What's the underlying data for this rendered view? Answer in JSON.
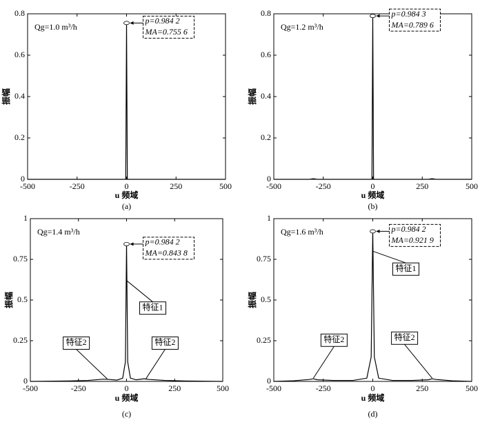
{
  "chart_data": [
    {
      "type": "line",
      "annotation": "Qg=1.0 m³/h",
      "peak_p": "p=0.984 2",
      "peak_ma": "MA=0.755 6",
      "xlabel": "u 频域",
      "ylabel": "振幅",
      "caption": "(a)",
      "x": [
        -500,
        -4,
        0,
        4,
        500
      ],
      "values": [
        0,
        0,
        0.7556,
        0,
        0
      ],
      "color": "#000000",
      "peak": {
        "x": 0,
        "y": 0.7556
      },
      "xlim": [
        -500,
        500
      ],
      "ylim": [
        0,
        0.8
      ],
      "xticks": [
        -500,
        -250,
        0,
        250,
        500
      ],
      "yticks": [
        0,
        0.2,
        0.4,
        0.6,
        0.8
      ]
    },
    {
      "type": "line",
      "annotation": "Qg=1.2 m³/h",
      "peak_p": "p=0.984 3",
      "peak_ma": "MA=0.789 6",
      "xlabel": "u 频域",
      "ylabel": "振幅",
      "caption": "(b)",
      "x": [
        -500,
        -320,
        -300,
        -280,
        -4,
        0,
        4,
        280,
        300,
        320,
        500
      ],
      "values": [
        0,
        0,
        0.003,
        0,
        0,
        0.7896,
        0,
        0,
        0.003,
        0,
        0
      ],
      "color": "#000000",
      "peak": {
        "x": 0,
        "y": 0.7896
      },
      "xlim": [
        -500,
        500
      ],
      "ylim": [
        0,
        0.8
      ],
      "xticks": [
        -500,
        -250,
        0,
        250,
        500
      ],
      "yticks": [
        0,
        0.2,
        0.4,
        0.6,
        0.8
      ]
    },
    {
      "type": "line",
      "annotation": "Qg=1.4 m³/h",
      "peak_p": "p=0.984 2",
      "peak_ma": "MA=0.843 8",
      "xlabel": "u 频域",
      "ylabel": "振幅",
      "caption": "(c)",
      "x": [
        -500,
        -300,
        -200,
        -120,
        -90,
        -50,
        -20,
        -6,
        0,
        6,
        20,
        50,
        90,
        120,
        200,
        300,
        500
      ],
      "values": [
        0,
        0.003,
        0.006,
        0.014,
        0.012,
        0.008,
        0.02,
        0.12,
        0.8438,
        0.12,
        0.02,
        0.01,
        0.016,
        0.012,
        0.006,
        0.003,
        0
      ],
      "color": "#000000",
      "peak": {
        "x": 0,
        "y": 0.8438
      },
      "features": [
        {
          "text": "特征1",
          "x": 0,
          "y": 0.62
        },
        {
          "text": "特征2",
          "x": -100,
          "y": 0.015
        },
        {
          "text": "特征2",
          "x": 100,
          "y": 0.015
        }
      ],
      "xlim": [
        -500,
        500
      ],
      "ylim": [
        0,
        1
      ],
      "xticks": [
        -500,
        -250,
        0,
        250,
        500
      ],
      "yticks": [
        0,
        0.25,
        0.5,
        0.75,
        1
      ]
    },
    {
      "type": "line",
      "annotation": "Qg=1.6 m³/h",
      "peak_p": "p=0.984 2",
      "peak_ma": "MA=0.921 9",
      "xlabel": "u 频域",
      "ylabel": "振幅",
      "caption": "(d)",
      "x": [
        -500,
        -400,
        -320,
        -300,
        -280,
        -200,
        -100,
        -30,
        -8,
        0,
        8,
        30,
        100,
        200,
        280,
        300,
        320,
        400,
        500
      ],
      "values": [
        0,
        0.004,
        0.012,
        0.016,
        0.01,
        0.006,
        0.006,
        0.02,
        0.15,
        0.9219,
        0.15,
        0.02,
        0.006,
        0.006,
        0.01,
        0.016,
        0.012,
        0.004,
        0
      ],
      "color": "#000000",
      "peak": {
        "x": 0,
        "y": 0.9219
      },
      "features": [
        {
          "text": "特征1",
          "x": 0,
          "y": 0.8
        },
        {
          "text": "特征2",
          "x": -300,
          "y": 0.02
        },
        {
          "text": "特征2",
          "x": 300,
          "y": 0.02
        }
      ],
      "xlim": [
        -500,
        500
      ],
      "ylim": [
        0,
        1
      ],
      "xticks": [
        -500,
        -250,
        0,
        250,
        500
      ],
      "yticks": [
        0,
        0.25,
        0.5,
        0.75,
        1
      ]
    }
  ]
}
